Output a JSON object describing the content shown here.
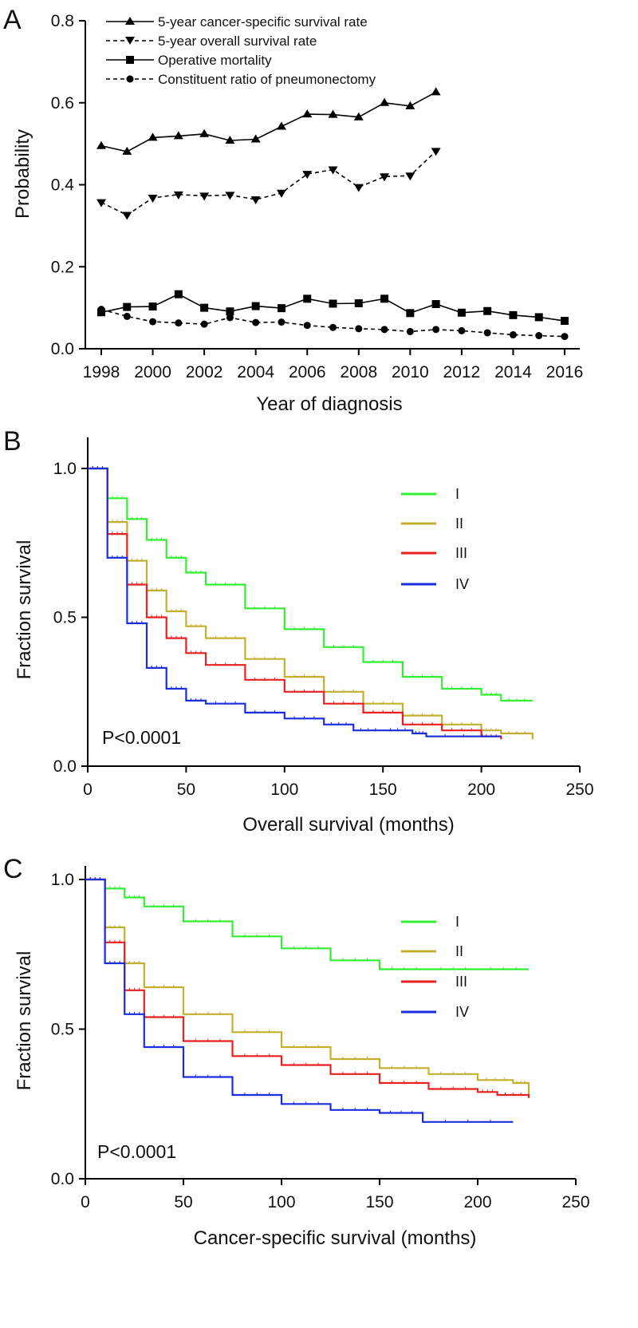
{
  "chart_data": [
    {
      "panel": "A",
      "type": "line",
      "xlabel": "Year of diagnosis",
      "ylabel": "Probability",
      "xlim": [
        1998,
        2016
      ],
      "ylim": [
        0,
        0.8
      ],
      "xticks": [
        "1998",
        "2000",
        "2002",
        "2004",
        "2006",
        "2008",
        "2010",
        "2012",
        "2014",
        "2016"
      ],
      "yticks": [
        "0.0",
        "0.2",
        "0.4",
        "0.6",
        "0.8"
      ],
      "legend_position": "top-left",
      "series": [
        {
          "name": "5-year cancer-specific survival rate",
          "marker": "triangle-up",
          "dash": "solid",
          "x": [
            1998,
            1999,
            2000,
            2001,
            2002,
            2003,
            2004,
            2005,
            2006,
            2007,
            2008,
            2009,
            2010,
            2011
          ],
          "values": [
            0.495,
            0.481,
            0.515,
            0.519,
            0.524,
            0.508,
            0.511,
            0.542,
            0.572,
            0.571,
            0.565,
            0.6,
            0.592,
            0.626
          ]
        },
        {
          "name": "5-year overall survival rate",
          "marker": "triangle-down",
          "dash": "dashed",
          "x": [
            1998,
            1999,
            2000,
            2001,
            2002,
            2003,
            2004,
            2005,
            2006,
            2007,
            2008,
            2009,
            2010,
            2011
          ],
          "values": [
            0.357,
            0.326,
            0.368,
            0.376,
            0.373,
            0.375,
            0.364,
            0.38,
            0.426,
            0.437,
            0.394,
            0.42,
            0.422,
            0.482
          ]
        },
        {
          "name": "Operative mortality",
          "marker": "square",
          "dash": "solid",
          "x": [
            1998,
            1999,
            2000,
            2001,
            2002,
            2003,
            2004,
            2005,
            2006,
            2007,
            2008,
            2009,
            2010,
            2011,
            2012,
            2013,
            2014,
            2015,
            2016
          ],
          "values": [
            0.089,
            0.102,
            0.103,
            0.133,
            0.1,
            0.091,
            0.104,
            0.099,
            0.122,
            0.11,
            0.111,
            0.122,
            0.087,
            0.109,
            0.088,
            0.092,
            0.082,
            0.077,
            0.068
          ]
        },
        {
          "name": "Constituent ratio of pneumonectomy",
          "marker": "circle",
          "dash": "dashed",
          "x": [
            1998,
            1999,
            2000,
            2001,
            2002,
            2003,
            2004,
            2005,
            2006,
            2007,
            2008,
            2009,
            2010,
            2011,
            2012,
            2013,
            2014,
            2015,
            2016
          ],
          "values": [
            0.096,
            0.079,
            0.066,
            0.063,
            0.06,
            0.076,
            0.064,
            0.065,
            0.057,
            0.052,
            0.049,
            0.047,
            0.042,
            0.047,
            0.044,
            0.039,
            0.034,
            0.032,
            0.03
          ]
        }
      ]
    },
    {
      "panel": "B",
      "type": "line",
      "xlabel": "Overall survival (months)",
      "ylabel": "Fraction survival",
      "xlim": [
        0,
        250
      ],
      "ylim": [
        0,
        1.05
      ],
      "xticks": [
        "0",
        "50",
        "100",
        "150",
        "200",
        "250"
      ],
      "yticks": [
        "0.0",
        "0.5",
        "1.0"
      ],
      "legend_position": "top-right",
      "annotation": "P<0.0001",
      "series": [
        {
          "name": "I",
          "color": "#33ee33",
          "x": [
            0,
            10,
            20,
            30,
            40,
            50,
            60,
            80,
            100,
            120,
            140,
            160,
            180,
            200,
            210,
            226
          ],
          "values": [
            1.0,
            0.9,
            0.83,
            0.76,
            0.7,
            0.65,
            0.61,
            0.53,
            0.46,
            0.4,
            0.35,
            0.3,
            0.26,
            0.24,
            0.22,
            0.22
          ]
        },
        {
          "name": "II",
          "color": "#c2b02e",
          "x": [
            0,
            10,
            20,
            30,
            40,
            50,
            60,
            80,
            100,
            120,
            140,
            160,
            180,
            200,
            210,
            226
          ],
          "values": [
            1.0,
            0.82,
            0.69,
            0.59,
            0.52,
            0.47,
            0.43,
            0.36,
            0.3,
            0.25,
            0.21,
            0.17,
            0.14,
            0.12,
            0.11,
            0.09
          ]
        },
        {
          "name": "III",
          "color": "#e82020",
          "x": [
            0,
            10,
            20,
            30,
            40,
            50,
            60,
            80,
            100,
            120,
            140,
            160,
            180,
            200,
            210
          ],
          "values": [
            1.0,
            0.78,
            0.61,
            0.5,
            0.43,
            0.38,
            0.34,
            0.29,
            0.25,
            0.21,
            0.18,
            0.14,
            0.12,
            0.1,
            0.09
          ]
        },
        {
          "name": "IV",
          "color": "#1a2ee0",
          "x": [
            0,
            10,
            20,
            30,
            40,
            50,
            60,
            80,
            100,
            120,
            135,
            150,
            165,
            172,
            210
          ],
          "values": [
            1.0,
            0.7,
            0.48,
            0.33,
            0.26,
            0.22,
            0.21,
            0.18,
            0.16,
            0.14,
            0.12,
            0.12,
            0.11,
            0.1,
            0.1
          ]
        }
      ]
    },
    {
      "panel": "C",
      "type": "line",
      "xlabel": "Cancer-specific survival (months)",
      "ylabel": "Fraction survival",
      "xlim": [
        0,
        250
      ],
      "ylim": [
        0,
        1.05
      ],
      "xticks": [
        "0",
        "50",
        "100",
        "150",
        "200",
        "250"
      ],
      "yticks": [
        "0.0",
        "0.5",
        "1.0"
      ],
      "legend_position": "top-right",
      "annotation": "P<0.0001",
      "series": [
        {
          "name": "I",
          "color": "#33ee33",
          "x": [
            0,
            10,
            20,
            30,
            50,
            75,
            100,
            125,
            150,
            175,
            200,
            226
          ],
          "values": [
            1.0,
            0.97,
            0.94,
            0.91,
            0.86,
            0.81,
            0.77,
            0.73,
            0.7,
            0.7,
            0.7,
            0.7
          ]
        },
        {
          "name": "II",
          "color": "#c2b02e",
          "x": [
            0,
            10,
            20,
            30,
            50,
            75,
            100,
            125,
            150,
            175,
            200,
            218,
            226
          ],
          "values": [
            1.0,
            0.84,
            0.72,
            0.64,
            0.55,
            0.49,
            0.44,
            0.4,
            0.37,
            0.35,
            0.33,
            0.32,
            0.27
          ]
        },
        {
          "name": "III",
          "color": "#e82020",
          "x": [
            0,
            10,
            20,
            30,
            50,
            75,
            100,
            125,
            150,
            175,
            200,
            210,
            226
          ],
          "values": [
            1.0,
            0.79,
            0.63,
            0.54,
            0.46,
            0.41,
            0.38,
            0.35,
            0.32,
            0.3,
            0.29,
            0.28,
            0.27
          ]
        },
        {
          "name": "IV",
          "color": "#1a2ee0",
          "x": [
            0,
            10,
            20,
            30,
            50,
            75,
            100,
            125,
            150,
            172,
            218
          ],
          "values": [
            1.0,
            0.72,
            0.55,
            0.44,
            0.34,
            0.28,
            0.25,
            0.23,
            0.22,
            0.19,
            0.19
          ]
        }
      ]
    }
  ]
}
